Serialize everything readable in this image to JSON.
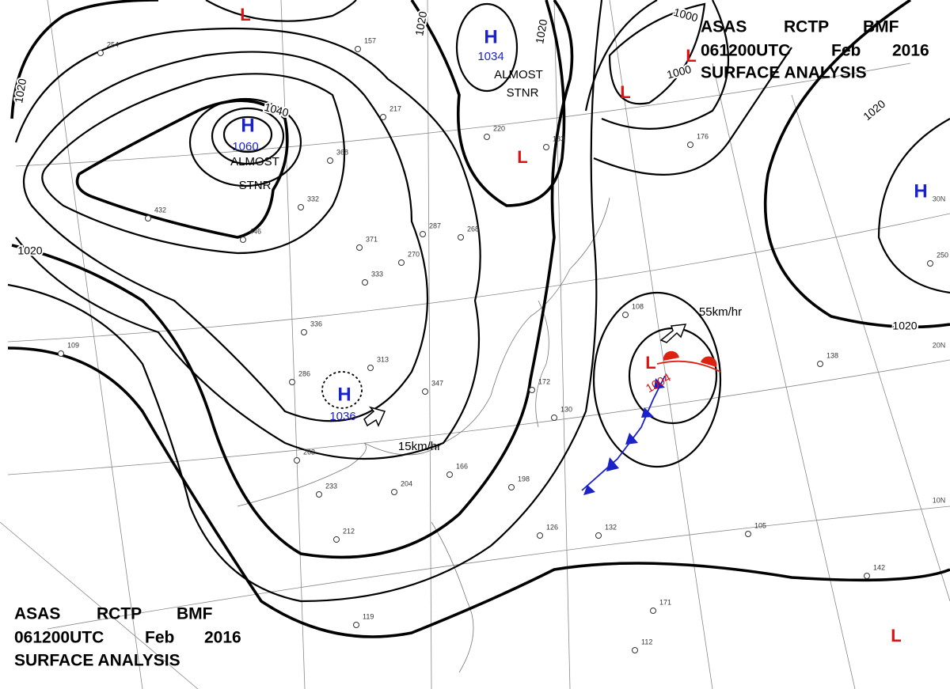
{
  "header": {
    "line1": [
      "ASAS",
      "RCTP",
      "BMF"
    ],
    "line2": [
      "061200UTC",
      "Feb",
      "2016"
    ],
    "line3": "SURFACE ANALYSIS"
  },
  "footer": {
    "line1": [
      "ASAS",
      "RCTP",
      "BMF"
    ],
    "line2": [
      "061200UTC",
      "Feb",
      "2016"
    ],
    "line3": "SURFACE ANALYSIS"
  },
  "highs": [
    {
      "symbol": "H",
      "pressure": "1060",
      "note": [
        "ALMOST",
        "STNR"
      ]
    },
    {
      "symbol": "H",
      "pressure": "1034",
      "note": [
        "ALMOST",
        "STNR"
      ]
    },
    {
      "symbol": "H",
      "pressure": "1036"
    },
    {
      "symbol": "H"
    }
  ],
  "lows": [
    {
      "symbol": "L",
      "pressure": "1004"
    },
    {
      "symbol": "L"
    },
    {
      "symbol": "L"
    },
    {
      "symbol": "L"
    },
    {
      "symbol": "L"
    },
    {
      "symbol": "L"
    }
  ],
  "isobar_labels": [
    "1020",
    "1020",
    "1020",
    "1000",
    "1000",
    "1020",
    "1040",
    "1020",
    "1020"
  ],
  "motions": [
    "55km/hr",
    "15km/hr"
  ],
  "latitude_labels": [
    "30N",
    "20N",
    "10N"
  ],
  "stations": [
    "254",
    "157",
    "217",
    "368",
    "332",
    "432",
    "446",
    "371",
    "287",
    "268",
    "270",
    "333",
    "336",
    "313",
    "347",
    "286",
    "263",
    "233",
    "204",
    "212",
    "166",
    "198",
    "172",
    "130",
    "126",
    "132",
    "105",
    "142",
    "119",
    "112",
    "171",
    "138",
    "109",
    "108",
    "176",
    "183",
    "220",
    "250"
  ]
}
